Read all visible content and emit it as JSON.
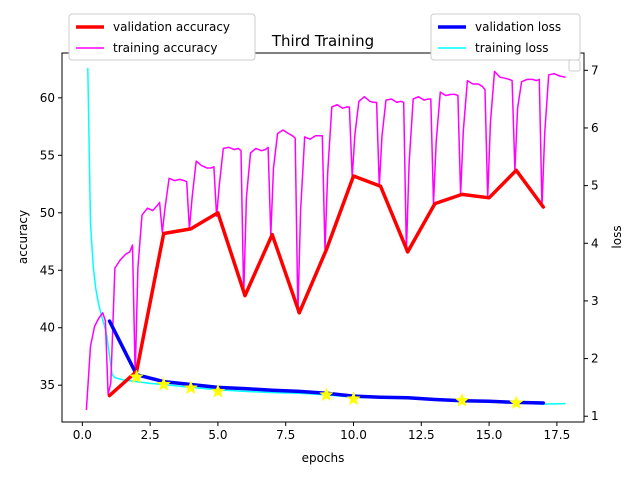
{
  "chart_data": {
    "type": "line",
    "title": "Third Training",
    "xlabel": "epochs",
    "ylabel_left": "accuracy",
    "ylabel_right": "loss",
    "xlim": [
      -0.75,
      18.5
    ],
    "ylim_left": [
      31.8,
      63.9
    ],
    "ylim_right": [
      0.9,
      7.3
    ],
    "x_ticks": [
      0.0,
      2.5,
      5.0,
      7.5,
      10.0,
      12.5,
      15.0,
      17.5
    ],
    "x_tick_labels": [
      "0.0",
      "2.5",
      "5.0",
      "7.5",
      "10.0",
      "12.5",
      "15.0",
      "17.5"
    ],
    "y_left_ticks": [
      35,
      40,
      45,
      50,
      55,
      60
    ],
    "y_left_tick_labels": [
      "35",
      "40",
      "45",
      "50",
      "55",
      "60"
    ],
    "y_right_ticks": [
      1,
      2,
      3,
      4,
      5,
      6,
      7
    ],
    "y_right_tick_labels": [
      "1",
      "2",
      "3",
      "4",
      "5",
      "6",
      "7"
    ],
    "grid": false,
    "legend_left": {
      "placement": "top-left",
      "entries": [
        "validation accuracy",
        "training accuracy"
      ]
    },
    "legend_right": {
      "placement": "top-right",
      "entries": [
        "validation loss",
        "training loss"
      ]
    },
    "series": [
      {
        "name": "validation accuracy",
        "axis": "left",
        "color": "#ff0000",
        "width": 3.5,
        "x": [
          1,
          2,
          3,
          4,
          5,
          6,
          7,
          8,
          9,
          10,
          11,
          12,
          13,
          14,
          15,
          16,
          17
        ],
        "values": [
          34.1,
          36.2,
          48.2,
          48.6,
          50.0,
          42.8,
          48.1,
          41.3,
          46.8,
          53.2,
          52.3,
          46.6,
          50.8,
          51.6,
          51.3,
          53.7,
          50.5
        ]
      },
      {
        "name": "training accuracy",
        "axis": "left",
        "color": "#ff00ff",
        "width": 1.5,
        "x": [
          0.15,
          0.3,
          0.45,
          0.6,
          0.75,
          0.85,
          0.95,
          1.05,
          1.2,
          1.4,
          1.6,
          1.75,
          1.85,
          1.95,
          2.05,
          2.2,
          2.4,
          2.6,
          2.75,
          2.85,
          2.95,
          3.05,
          3.2,
          3.4,
          3.6,
          3.75,
          3.85,
          3.95,
          4.05,
          4.2,
          4.4,
          4.6,
          4.75,
          4.85,
          4.95,
          5.05,
          5.2,
          5.4,
          5.6,
          5.75,
          5.85,
          5.95,
          6.05,
          6.2,
          6.4,
          6.6,
          6.75,
          6.85,
          6.95,
          7.05,
          7.2,
          7.4,
          7.6,
          7.75,
          7.85,
          7.95,
          8.05,
          8.2,
          8.4,
          8.6,
          8.75,
          8.85,
          8.95,
          9.05,
          9.2,
          9.4,
          9.6,
          9.75,
          9.85,
          9.95,
          10.05,
          10.2,
          10.4,
          10.6,
          10.75,
          10.85,
          10.95,
          11.05,
          11.2,
          11.4,
          11.6,
          11.75,
          11.85,
          11.95,
          12.05,
          12.2,
          12.4,
          12.6,
          12.75,
          12.85,
          12.95,
          13.05,
          13.2,
          13.4,
          13.6,
          13.75,
          13.85,
          13.95,
          14.05,
          14.2,
          14.4,
          14.6,
          14.75,
          14.85,
          14.95,
          15.05,
          15.2,
          15.4,
          15.6,
          15.75,
          15.85,
          15.95,
          16.05,
          16.2,
          16.4,
          16.6,
          16.75,
          16.85,
          16.95,
          17.05,
          17.2,
          17.4,
          17.6,
          17.8
        ],
        "values": [
          32.9,
          38.4,
          40.1,
          40.8,
          41.3,
          40.6,
          34.2,
          35.2,
          45.2,
          45.9,
          46.4,
          46.6,
          47.2,
          35.9,
          45.2,
          49.8,
          50.4,
          50.2,
          50.6,
          50.9,
          48.3,
          50.4,
          53.0,
          52.8,
          52.9,
          52.8,
          52.7,
          48.6,
          51.4,
          54.5,
          54.1,
          53.9,
          53.9,
          54.0,
          49.7,
          52.4,
          55.6,
          55.7,
          55.5,
          55.6,
          55.4,
          42.8,
          51.3,
          55.2,
          55.6,
          55.4,
          55.5,
          55.7,
          48.1,
          53.9,
          56.9,
          57.2,
          56.9,
          56.7,
          56.5,
          41.3,
          50.2,
          56.6,
          56.4,
          56.7,
          56.7,
          56.7,
          46.8,
          53.5,
          59.2,
          59.4,
          59.1,
          59.2,
          59.2,
          53.1,
          56.8,
          59.7,
          60.1,
          59.7,
          59.6,
          59.6,
          52.3,
          56.7,
          59.8,
          59.9,
          59.6,
          59.7,
          59.6,
          46.6,
          54.3,
          59.9,
          60.1,
          59.8,
          59.9,
          59.9,
          50.8,
          56.2,
          60.5,
          60.2,
          60.3,
          60.3,
          60.2,
          51.6,
          57.1,
          61.5,
          61.2,
          61.2,
          61.0,
          60.7,
          51.3,
          57.8,
          62.3,
          61.8,
          61.7,
          61.6,
          61.5,
          53.7,
          59.1,
          61.4,
          61.6,
          61.6,
          61.5,
          61.6,
          50.5,
          56.9,
          62.0,
          62.1,
          61.9,
          61.8
        ]
      },
      {
        "name": "validation loss",
        "axis": "right",
        "color": "#0000ff",
        "width": 3.5,
        "x": [
          1,
          2,
          3,
          4,
          5,
          6,
          7,
          8,
          9,
          10,
          11,
          12,
          13,
          14,
          15,
          16,
          17
        ],
        "values": [
          2.65,
          1.72,
          1.6,
          1.55,
          1.5,
          1.48,
          1.45,
          1.43,
          1.4,
          1.35,
          1.33,
          1.32,
          1.29,
          1.27,
          1.26,
          1.24,
          1.23
        ]
      },
      {
        "name": "training loss",
        "axis": "right",
        "color": "#00ffff",
        "width": 1.5,
        "x": [
          0.2,
          0.3,
          0.4,
          0.5,
          0.6,
          0.7,
          0.8,
          0.9,
          1.0,
          1.1,
          1.2,
          1.5,
          2.0,
          2.5,
          3.0,
          4.0,
          5.0,
          6.0,
          7.0,
          8.0,
          9.0,
          10.0,
          11.0,
          12.0,
          13.0,
          14.0,
          15.0,
          16.0,
          17.0,
          17.8
        ],
        "values": [
          7.03,
          4.35,
          3.6,
          3.2,
          2.95,
          2.75,
          2.6,
          2.4,
          2.05,
          1.72,
          1.67,
          1.63,
          1.6,
          1.57,
          1.55,
          1.5,
          1.46,
          1.43,
          1.41,
          1.4,
          1.37,
          1.33,
          1.32,
          1.31,
          1.3,
          1.28,
          1.26,
          1.23,
          1.21,
          1.22
        ]
      }
    ],
    "markers": {
      "shape": "star",
      "color": "#ffff00",
      "axis": "right",
      "x": [
        2,
        3,
        4,
        5,
        9,
        10,
        14,
        16
      ],
      "values": [
        1.68,
        1.55,
        1.49,
        1.43,
        1.37,
        1.3,
        1.27,
        1.23
      ]
    }
  }
}
